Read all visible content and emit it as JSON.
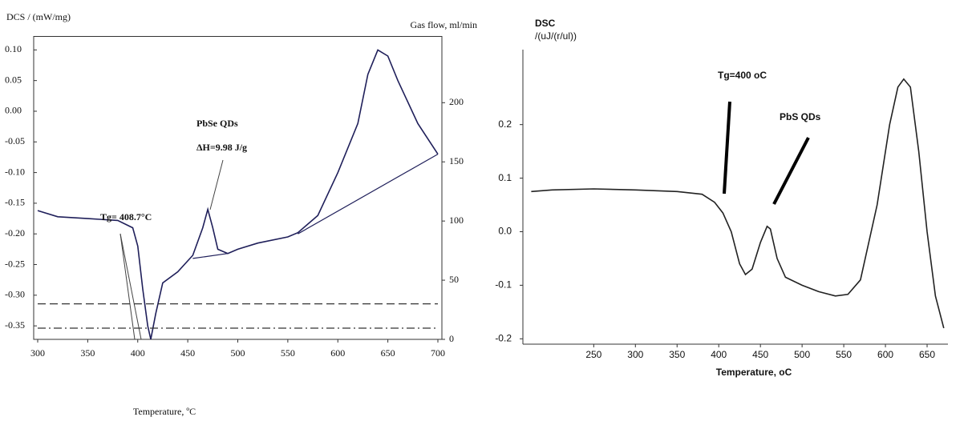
{
  "chart_data": [
    {
      "type": "line",
      "y_label": "DCS / (mW/mg)",
      "y2_label": "Gas flow, ml/min",
      "x_label": "Temperature, ºC",
      "annotations": [
        "Tg= 408.7°C",
        "PbSe QDs",
        "ΔH=9.98 J/g"
      ],
      "xlim": [
        300,
        700
      ],
      "xticks": [
        300,
        350,
        400,
        450,
        500,
        550,
        600,
        650,
        700
      ],
      "ylim": [
        -0.372,
        0.122
      ],
      "yticks": [
        {
          "value": 0.1,
          "label": "0.10"
        },
        0.05,
        {
          "value": 0,
          "label": "0.00"
        },
        -0.05,
        {
          "value": -0.1,
          "label": "-0.10"
        },
        -0.15,
        {
          "value": -0.2,
          "label": "-0.20"
        },
        -0.25,
        {
          "value": -0.3,
          "label": "-0.30"
        },
        -0.35
      ],
      "y2lim": [
        0,
        256
      ],
      "y2ticks": [
        0,
        50,
        100,
        150,
        200
      ],
      "series": [
        {
          "color": "#1f1f5a",
          "x": [
            300,
            320,
            350,
            380,
            395,
            400,
            405,
            410,
            413,
            418,
            425,
            440,
            455,
            465,
            470,
            475,
            480,
            490,
            500,
            520,
            550,
            560,
            580,
            600,
            620,
            630,
            640,
            650,
            660,
            680,
            700
          ],
          "values": [
            -0.162,
            -0.172,
            -0.175,
            -0.178,
            -0.19,
            -0.22,
            -0.29,
            -0.35,
            -0.372,
            -0.33,
            -0.28,
            -0.262,
            -0.235,
            -0.19,
            -0.16,
            -0.19,
            -0.225,
            -0.232,
            -0.225,
            -0.215,
            -0.205,
            -0.198,
            -0.17,
            -0.1,
            -0.02,
            0.06,
            0.1,
            0.09,
            0.05,
            -0.02,
            -0.07
          ]
        },
        {
          "color": "#1f1f5a",
          "x": [
            455,
            490
          ],
          "values": [
            -0.24,
            -0.232
          ]
        },
        {
          "color": "#1f1f5a",
          "x": [
            560,
            700
          ],
          "values": [
            -0.2,
            -0.07
          ]
        },
        {
          "color": "#333",
          "axis": "y2",
          "dash": "10 5",
          "x": [
            300,
            700
          ],
          "values": [
            30,
            30
          ]
        },
        {
          "color": "#333",
          "axis": "y2",
          "dash": "10 4 2 4",
          "x": [
            300,
            700
          ],
          "values": [
            9.5,
            9.5
          ]
        }
      ]
    },
    {
      "type": "line",
      "title": "DSC",
      "y_label": "/(uJ/(r/ul))",
      "x_label": "Temperature, oC",
      "annotations": [
        "Tg=400 oC",
        "PbS QDs"
      ],
      "xlim": [
        165,
        675
      ],
      "xticks": [
        250,
        300,
        350,
        400,
        450,
        500,
        550,
        600,
        650
      ],
      "ylim": [
        -0.21,
        0.34
      ],
      "yticks": [
        0.2,
        0.1,
        {
          "value": 0,
          "label": "0.0"
        },
        -0.1,
        -0.2
      ],
      "series": [
        {
          "color": "#222",
          "x": [
            175,
            200,
            250,
            300,
            350,
            380,
            395,
            405,
            415,
            425,
            432,
            440,
            450,
            458,
            462,
            470,
            480,
            500,
            520,
            540,
            555,
            570,
            590,
            605,
            615,
            622,
            630,
            640,
            650,
            660,
            670
          ],
          "values": [
            0.075,
            0.078,
            0.08,
            0.078,
            0.075,
            0.07,
            0.055,
            0.035,
            0.0,
            -0.06,
            -0.08,
            -0.07,
            -0.02,
            0.01,
            0.005,
            -0.05,
            -0.085,
            -0.1,
            -0.112,
            -0.12,
            -0.117,
            -0.09,
            0.05,
            0.2,
            0.27,
            0.285,
            0.27,
            0.15,
            0.0,
            -0.12,
            -0.18
          ]
        }
      ]
    }
  ]
}
